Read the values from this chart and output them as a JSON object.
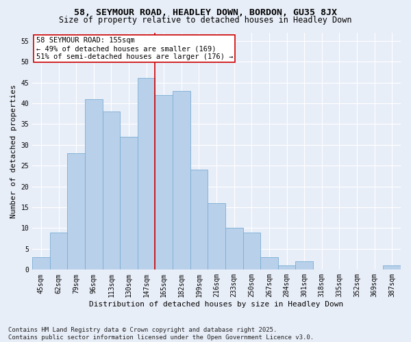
{
  "title": "58, SEYMOUR ROAD, HEADLEY DOWN, BORDON, GU35 8JX",
  "subtitle": "Size of property relative to detached houses in Headley Down",
  "xlabel": "Distribution of detached houses by size in Headley Down",
  "ylabel": "Number of detached properties",
  "bins": [
    "45sqm",
    "62sqm",
    "79sqm",
    "96sqm",
    "113sqm",
    "130sqm",
    "147sqm",
    "165sqm",
    "182sqm",
    "199sqm",
    "216sqm",
    "233sqm",
    "250sqm",
    "267sqm",
    "284sqm",
    "301sqm",
    "318sqm",
    "335sqm",
    "352sqm",
    "369sqm",
    "387sqm"
  ],
  "values": [
    3,
    9,
    28,
    41,
    38,
    32,
    46,
    42,
    43,
    24,
    16,
    10,
    9,
    3,
    1,
    2,
    0,
    0,
    0,
    0,
    1
  ],
  "bar_color": "#b8d0ea",
  "bar_edge_color": "#7aadd4",
  "background_color": "#e8eef8",
  "grid_color": "#ffffff",
  "vline_color": "#cc0000",
  "annotation_text": "58 SEYMOUR ROAD: 155sqm\n← 49% of detached houses are smaller (169)\n51% of semi-detached houses are larger (176) →",
  "annotation_box_color": "#ffffff",
  "annotation_box_edge": "#cc0000",
  "ylim": [
    0,
    57
  ],
  "yticks": [
    0,
    5,
    10,
    15,
    20,
    25,
    30,
    35,
    40,
    45,
    50,
    55
  ],
  "footer": "Contains HM Land Registry data © Crown copyright and database right 2025.\nContains public sector information licensed under the Open Government Licence v3.0.",
  "title_fontsize": 9.5,
  "subtitle_fontsize": 8.5,
  "xlabel_fontsize": 8,
  "ylabel_fontsize": 8,
  "tick_fontsize": 7,
  "annotation_fontsize": 7.5,
  "footer_fontsize": 6.5
}
